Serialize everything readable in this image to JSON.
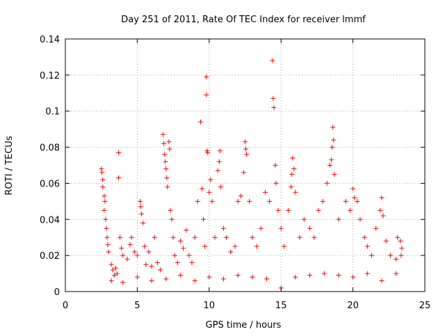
{
  "chart_data": {
    "type": "scatter",
    "title": "Day 251 of 2011, Rate Of TEC Index for receiver lmmf",
    "xlabel": "GPS time / hours",
    "ylabel": "ROTI / TECUs",
    "xlim": [
      0,
      25
    ],
    "ylim": [
      0,
      0.14
    ],
    "x_ticks": [
      "0",
      "5",
      "10",
      "15",
      "20",
      "25"
    ],
    "y_ticks": [
      "0",
      "0.02",
      "0.04",
      "0.06",
      "0.08",
      "0.1",
      "0.12",
      "0.14"
    ],
    "grid": true,
    "marker": "+",
    "series": [
      {
        "color": "#ff0000",
        "points": [
          [
            2.5,
            0.068
          ],
          [
            2.55,
            0.066
          ],
          [
            2.6,
            0.062
          ],
          [
            2.6,
            0.058
          ],
          [
            2.7,
            0.053
          ],
          [
            2.75,
            0.05
          ],
          [
            2.7,
            0.045
          ],
          [
            2.8,
            0.04
          ],
          [
            2.85,
            0.035
          ],
          [
            2.9,
            0.03
          ],
          [
            2.95,
            0.026
          ],
          [
            3.0,
            0.022
          ],
          [
            3.2,
            0.015
          ],
          [
            3.3,
            0.012
          ],
          [
            3.4,
            0.009
          ],
          [
            3.5,
            0.013
          ],
          [
            3.6,
            0.01
          ],
          [
            3.7,
            0.077
          ],
          [
            3.7,
            0.063
          ],
          [
            3.8,
            0.03
          ],
          [
            3.9,
            0.024
          ],
          [
            4.0,
            0.02
          ],
          [
            4.3,
            0.018
          ],
          [
            4.5,
            0.026
          ],
          [
            4.6,
            0.03
          ],
          [
            4.8,
            0.022
          ],
          [
            5.0,
            0.02
          ],
          [
            5.2,
            0.05
          ],
          [
            5.25,
            0.047
          ],
          [
            5.3,
            0.043
          ],
          [
            5.4,
            0.038
          ],
          [
            5.5,
            0.025
          ],
          [
            5.6,
            0.015
          ],
          [
            5.8,
            0.022
          ],
          [
            6.0,
            0.014
          ],
          [
            6.2,
            0.03
          ],
          [
            6.4,
            0.016
          ],
          [
            6.6,
            0.012
          ],
          [
            6.8,
            0.087
          ],
          [
            6.85,
            0.082
          ],
          [
            6.9,
            0.076
          ],
          [
            6.95,
            0.072
          ],
          [
            7.0,
            0.068
          ],
          [
            7.05,
            0.063
          ],
          [
            7.1,
            0.058
          ],
          [
            7.2,
            0.083
          ],
          [
            7.25,
            0.079
          ],
          [
            7.3,
            0.045
          ],
          [
            7.4,
            0.04
          ],
          [
            7.5,
            0.03
          ],
          [
            7.6,
            0.02
          ],
          [
            7.8,
            0.016
          ],
          [
            8.0,
            0.028
          ],
          [
            8.2,
            0.024
          ],
          [
            8.4,
            0.034
          ],
          [
            8.6,
            0.02
          ],
          [
            8.8,
            0.016
          ],
          [
            9.0,
            0.03
          ],
          [
            9.2,
            0.05
          ],
          [
            9.4,
            0.094
          ],
          [
            9.5,
            0.057
          ],
          [
            9.6,
            0.04
          ],
          [
            9.7,
            0.025
          ],
          [
            9.8,
            0.119
          ],
          [
            9.8,
            0.109
          ],
          [
            9.85,
            0.078
          ],
          [
            9.9,
            0.077
          ],
          [
            10.0,
            0.055
          ],
          [
            10.1,
            0.062
          ],
          [
            10.2,
            0.05
          ],
          [
            10.4,
            0.03
          ],
          [
            10.6,
            0.067
          ],
          [
            10.7,
            0.072
          ],
          [
            10.75,
            0.078
          ],
          [
            10.8,
            0.058
          ],
          [
            11.0,
            0.035
          ],
          [
            11.2,
            0.03
          ],
          [
            11.5,
            0.022
          ],
          [
            11.8,
            0.025
          ],
          [
            12.0,
            0.05
          ],
          [
            12.2,
            0.053
          ],
          [
            12.4,
            0.066
          ],
          [
            12.5,
            0.083
          ],
          [
            12.55,
            0.079
          ],
          [
            12.6,
            0.076
          ],
          [
            12.8,
            0.05
          ],
          [
            13.0,
            0.03
          ],
          [
            13.3,
            0.025
          ],
          [
            13.6,
            0.035
          ],
          [
            13.9,
            0.055
          ],
          [
            14.2,
            0.05
          ],
          [
            14.4,
            0.128
          ],
          [
            14.45,
            0.107
          ],
          [
            14.5,
            0.102
          ],
          [
            14.6,
            0.07
          ],
          [
            14.65,
            0.06
          ],
          [
            14.8,
            0.045
          ],
          [
            15.0,
            0.035
          ],
          [
            15.2,
            0.025
          ],
          [
            15.5,
            0.045
          ],
          [
            15.7,
            0.058
          ],
          [
            15.75,
            0.065
          ],
          [
            15.8,
            0.074
          ],
          [
            15.9,
            0.068
          ],
          [
            16.0,
            0.055
          ],
          [
            16.3,
            0.03
          ],
          [
            16.6,
            0.04
          ],
          [
            17.0,
            0.035
          ],
          [
            17.3,
            0.03
          ],
          [
            17.6,
            0.045
          ],
          [
            17.9,
            0.05
          ],
          [
            18.2,
            0.06
          ],
          [
            18.4,
            0.07
          ],
          [
            18.5,
            0.073
          ],
          [
            18.55,
            0.08
          ],
          [
            18.6,
            0.091
          ],
          [
            18.65,
            0.084
          ],
          [
            18.7,
            0.065
          ],
          [
            19.0,
            0.04
          ],
          [
            19.5,
            0.05
          ],
          [
            19.8,
            0.045
          ],
          [
            20.0,
            0.057
          ],
          [
            20.1,
            0.052
          ],
          [
            20.3,
            0.05
          ],
          [
            20.5,
            0.04
          ],
          [
            20.8,
            0.03
          ],
          [
            21.0,
            0.025
          ],
          [
            21.3,
            0.02
          ],
          [
            21.6,
            0.035
          ],
          [
            21.9,
            0.045
          ],
          [
            22.0,
            0.052
          ],
          [
            22.1,
            0.042
          ],
          [
            22.3,
            0.028
          ],
          [
            22.6,
            0.02
          ],
          [
            23.0,
            0.018
          ],
          [
            23.1,
            0.03
          ],
          [
            23.3,
            0.028
          ],
          [
            23.4,
            0.024
          ],
          [
            23.35,
            0.02
          ],
          [
            3.2,
            0.006
          ],
          [
            4.0,
            0.005
          ],
          [
            5.0,
            0.008
          ],
          [
            6.0,
            0.006
          ],
          [
            7.0,
            0.007
          ],
          [
            8.0,
            0.009
          ],
          [
            9.0,
            0.006
          ],
          [
            10.0,
            0.008
          ],
          [
            11.0,
            0.007
          ],
          [
            12.0,
            0.009
          ],
          [
            13.0,
            0.008
          ],
          [
            14.0,
            0.007
          ],
          [
            15.0,
            0.002
          ],
          [
            16.0,
            0.008
          ],
          [
            17.0,
            0.009
          ],
          [
            18.0,
            0.01
          ],
          [
            19.0,
            0.009
          ],
          [
            20.0,
            0.008
          ],
          [
            21.0,
            0.01
          ],
          [
            22.0,
            0.006
          ],
          [
            23.0,
            0.01
          ]
        ]
      }
    ]
  }
}
